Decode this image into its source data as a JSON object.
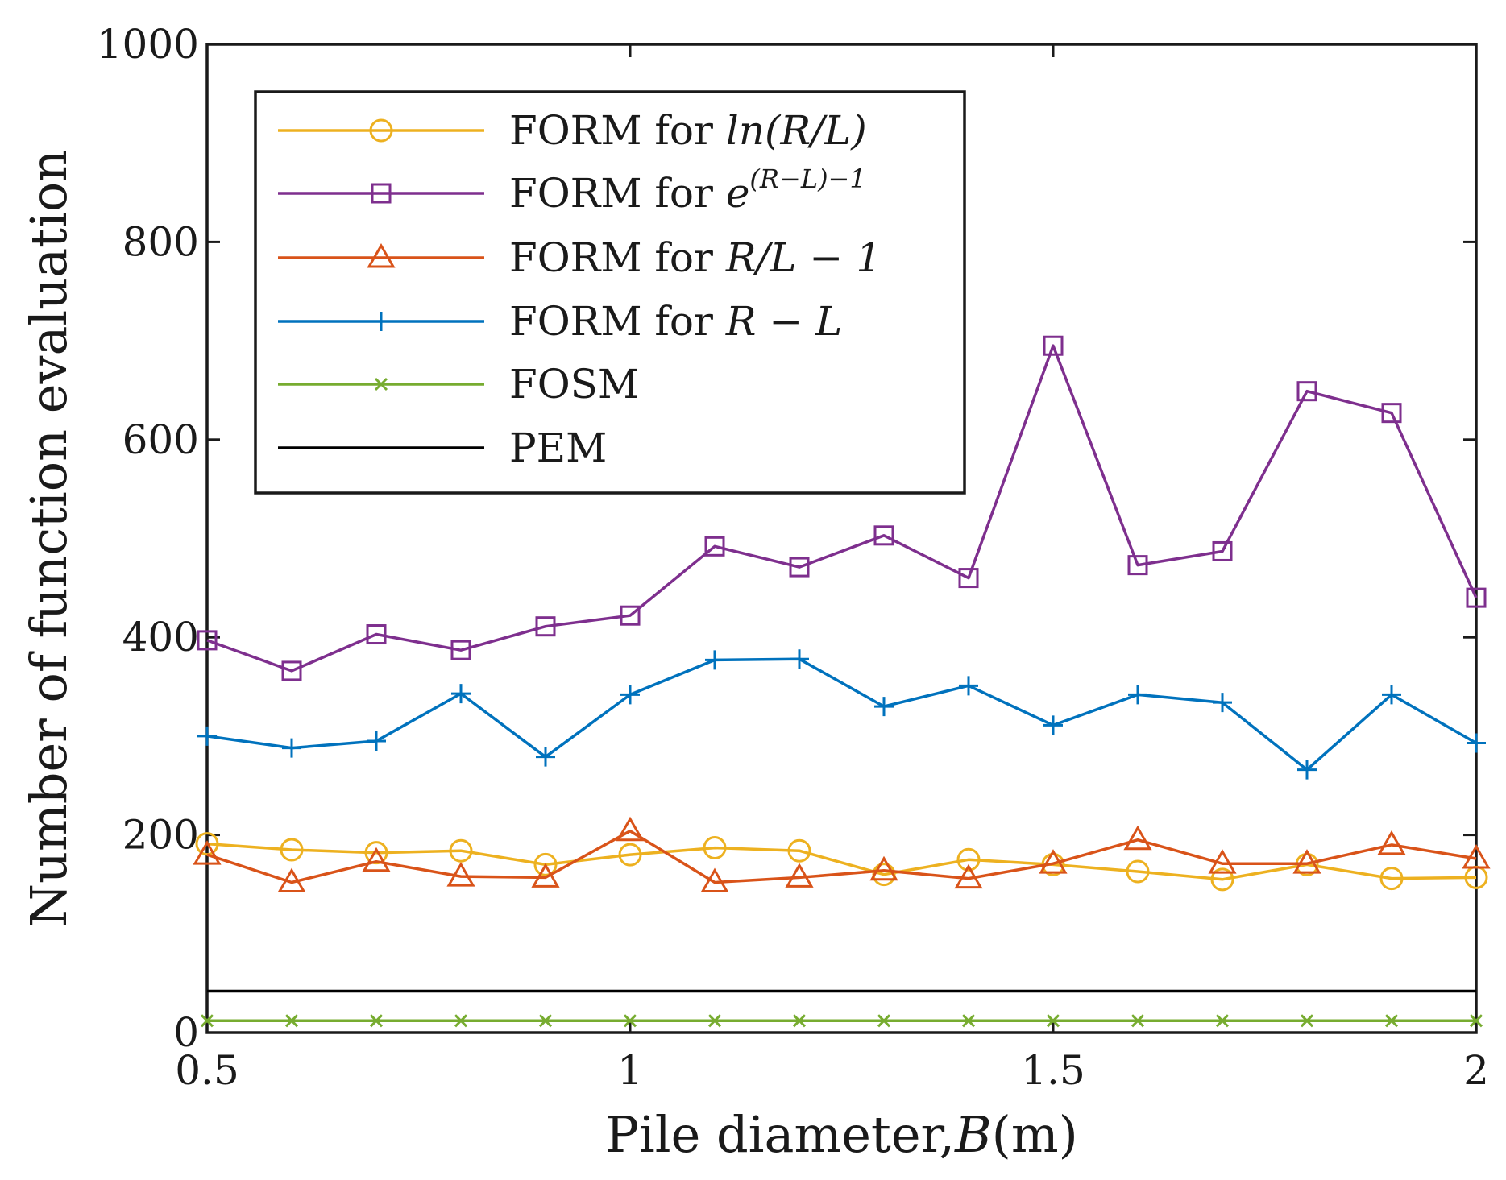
{
  "chart_data": {
    "type": "line",
    "title": "",
    "xlabel": {
      "prefix": "Pile diameter,",
      "var": "B",
      "suffix": "(m)"
    },
    "ylabel": "Number of function evaluation",
    "xlim": [
      0.5,
      2
    ],
    "ylim": [
      0,
      1000
    ],
    "xticks": [
      0.5,
      1,
      1.5,
      2
    ],
    "xtick_labels": [
      "0.5",
      "1",
      "1.5",
      "2"
    ],
    "yticks": [
      0,
      200,
      400,
      600,
      800,
      1000
    ],
    "ytick_labels": [
      "0",
      "200",
      "400",
      "600",
      "800",
      "1000"
    ],
    "grid": false,
    "legend_position": "top-left",
    "x": [
      0.5,
      0.6,
      0.7,
      0.8,
      0.9,
      1.0,
      1.1,
      1.2,
      1.3,
      1.4,
      1.5,
      1.6,
      1.7,
      1.8,
      1.9,
      2.0
    ],
    "series": [
      {
        "name": "FORM for ln(R/L)",
        "legend_prefix": "FORM for ",
        "legend_math": "ln(R/L)",
        "color": "#EDB120",
        "marker": "circle",
        "values": [
          191,
          185,
          182,
          184,
          170,
          180,
          187,
          184,
          160,
          175,
          170,
          163,
          155,
          170,
          156,
          157
        ]
      },
      {
        "name": "FORM for e^(R-L)-1",
        "legend_prefix": "FORM for ",
        "legend_math": "e",
        "legend_sup": "(R−L)−1",
        "color": "#7E2F8E",
        "marker": "square",
        "values": [
          397,
          366,
          403,
          387,
          411,
          422,
          492,
          471,
          503,
          460,
          695,
          473,
          487,
          649,
          627,
          440
        ]
      },
      {
        "name": "FORM for R/L-1",
        "legend_prefix": "FORM for ",
        "legend_math": "R/L − 1",
        "color": "#D95319",
        "marker": "triangle",
        "values": [
          180,
          152,
          173,
          158,
          157,
          204,
          152,
          157,
          164,
          156,
          171,
          195,
          171,
          171,
          190,
          176
        ]
      },
      {
        "name": "FORM for R-L",
        "legend_prefix": "FORM for ",
        "legend_math": "R − L",
        "color": "#0072BD",
        "marker": "plus",
        "values": [
          300,
          288,
          295,
          343,
          279,
          342,
          377,
          378,
          330,
          351,
          311,
          342,
          334,
          266,
          342,
          293
        ]
      },
      {
        "name": "FOSM",
        "legend_prefix": "FOSM",
        "legend_math": "",
        "color": "#77AC30",
        "marker": "x",
        "values": [
          12,
          12,
          12,
          12,
          12,
          12,
          12,
          12,
          12,
          12,
          12,
          12,
          12,
          12,
          12,
          12
        ]
      },
      {
        "name": "PEM",
        "legend_prefix": "PEM",
        "legend_math": "",
        "color": "#000000",
        "marker": "none",
        "values": [
          42,
          42,
          42,
          42,
          42,
          42,
          42,
          42,
          42,
          42,
          42,
          42,
          42,
          42,
          42,
          42
        ]
      }
    ]
  }
}
